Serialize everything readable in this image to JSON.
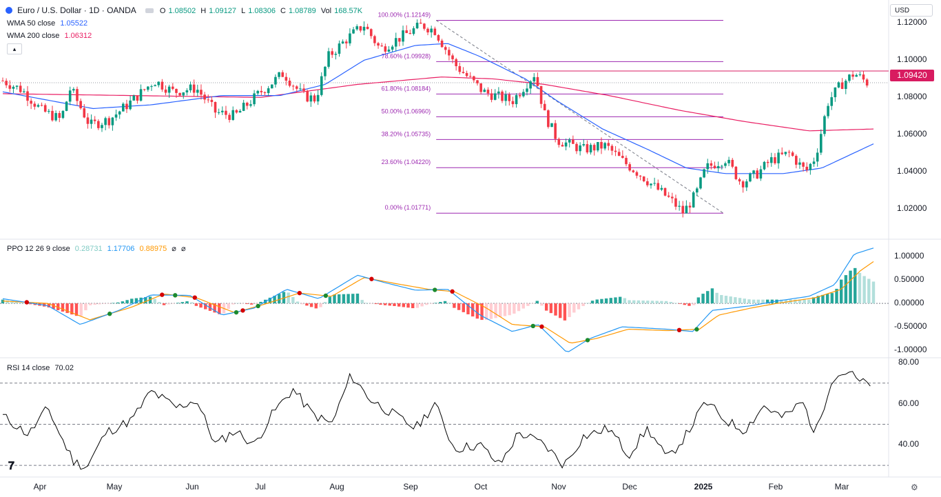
{
  "header": {
    "symbol_title": "Euro / U.S. Dollar · 1D · OANDA",
    "o_key": "O",
    "o_val": "1.08502",
    "h_key": "H",
    "h_val": "1.09127",
    "l_key": "L",
    "l_val": "1.08306",
    "c_key": "C",
    "c_val": "1.08789",
    "vol_key": "Vol",
    "vol_val": "168.57K",
    "wma50_label": "WMA 50 close",
    "wma50_value": "1.05522",
    "wma200_label": "WMA 200 close",
    "wma200_value": "1.06312",
    "currency": "USD",
    "current_price": "1.09420"
  },
  "ppo_legend": {
    "label": "PPO 12 26 9 close",
    "hist": "0.28731",
    "ppo": "1.17706",
    "signal": "0.88975"
  },
  "rsi_legend": {
    "label": "RSI 14 close",
    "value": "70.02"
  },
  "colors": {
    "up": "#089981",
    "down": "#f23645",
    "wma50": "#2962ff",
    "wma200": "#e91e63",
    "fib": "#9c27b0",
    "ppo": "#2196f3",
    "signal": "#ff9800",
    "rsi": "#000000"
  },
  "axes": {
    "price_ticks": [
      "1.12000",
      "1.10000",
      "1.08000",
      "1.06000",
      "1.04000",
      "1.02000"
    ],
    "ppo_ticks": [
      "1.00000",
      "0.50000",
      "0.00000",
      "-0.50000",
      "-1.00000"
    ],
    "rsi_ticks": [
      "80.00",
      "60.00",
      "40.00"
    ],
    "months": [
      "Apr",
      "May",
      "Jun",
      "Jul",
      "Aug",
      "Sep",
      "Oct",
      "Nov",
      "Dec",
      "2025",
      "Feb",
      "Mar"
    ]
  },
  "fib_levels": [
    {
      "label": "100.00% (1.12149)",
      "price": 1.12149
    },
    {
      "label": "78.60% (1.09928)",
      "price": 1.09928
    },
    {
      "label": "61.80% (1.08184)",
      "price": 1.08184
    },
    {
      "label": "50.00% (1.06960)",
      "price": 1.0696
    },
    {
      "label": "38.20% (1.05735)",
      "price": 1.05735
    },
    {
      "label": "23.60% (1.04220)",
      "price": 1.0422
    },
    {
      "label": "0.00% (1.01771)",
      "price": 1.01771
    }
  ],
  "chart_data": {
    "type": "candlestick",
    "title": "Euro / U.S. Dollar · 1D · OANDA",
    "x_unit": "month",
    "price_range": [
      1.01,
      1.125
    ],
    "price_series_approx": [
      [
        0,
        1.089
      ],
      [
        0.3,
        1.084
      ],
      [
        0.6,
        1.073
      ],
      [
        0.9,
        1.068
      ],
      [
        1.05,
        1.085
      ],
      [
        1.35,
        1.065
      ],
      [
        1.65,
        1.068
      ],
      [
        2.0,
        1.078
      ],
      [
        2.35,
        1.089
      ],
      [
        2.65,
        1.083
      ],
      [
        3.0,
        1.085
      ],
      [
        3.3,
        1.072
      ],
      [
        3.6,
        1.07
      ],
      [
        4.0,
        1.083
      ],
      [
        4.35,
        1.093
      ],
      [
        4.65,
        1.081
      ],
      [
        4.85,
        1.079
      ],
      [
        5.05,
        1.102
      ],
      [
        5.35,
        1.112
      ],
      [
        5.6,
        1.119
      ],
      [
        5.85,
        1.106
      ],
      [
        6.2,
        1.113
      ],
      [
        6.5,
        1.119
      ],
      [
        6.7,
        1.116
      ],
      [
        7.0,
        1.098
      ],
      [
        7.45,
        1.083
      ],
      [
        7.9,
        1.078
      ],
      [
        8.25,
        1.093
      ],
      [
        8.4,
        1.071
      ],
      [
        8.6,
        1.057
      ],
      [
        9.0,
        1.052
      ],
      [
        9.35,
        1.054
      ],
      [
        9.6,
        1.046
      ],
      [
        9.9,
        1.038
      ],
      [
        10.1,
        1.032
      ],
      [
        10.35,
        1.025
      ],
      [
        10.55,
        1.018
      ],
      [
        10.75,
        1.028
      ],
      [
        10.9,
        1.042
      ],
      [
        11.2,
        1.047
      ],
      [
        11.45,
        1.034
      ],
      [
        11.7,
        1.039
      ],
      [
        11.9,
        1.046
      ],
      [
        12.2,
        1.05
      ],
      [
        12.45,
        1.04
      ],
      [
        12.6,
        1.048
      ],
      [
        12.8,
        1.078
      ],
      [
        13.0,
        1.087
      ],
      [
        13.2,
        1.093
      ],
      [
        13.4,
        1.088
      ]
    ],
    "wma50_approx": [
      [
        0,
        1.083
      ],
      [
        1.4,
        1.074
      ],
      [
        2.3,
        1.076
      ],
      [
        3.4,
        1.081
      ],
      [
        4.3,
        1.081
      ],
      [
        5.0,
        1.087
      ],
      [
        5.6,
        1.1
      ],
      [
        6.4,
        1.108
      ],
      [
        6.9,
        1.109
      ],
      [
        7.4,
        1.102
      ],
      [
        8.1,
        1.09
      ],
      [
        8.6,
        1.078
      ],
      [
        9.3,
        1.063
      ],
      [
        10.0,
        1.052
      ],
      [
        10.6,
        1.042
      ],
      [
        11.2,
        1.039
      ],
      [
        12.1,
        1.039
      ],
      [
        12.7,
        1.042
      ],
      [
        13.5,
        1.055
      ]
    ],
    "wma200_approx": [
      [
        0,
        1.082
      ],
      [
        2.0,
        1.081
      ],
      [
        4.0,
        1.08
      ],
      [
        5.5,
        1.087
      ],
      [
        6.8,
        1.091
      ],
      [
        7.6,
        1.09
      ],
      [
        8.4,
        1.087
      ],
      [
        9.4,
        1.081
      ],
      [
        10.5,
        1.073
      ],
      [
        11.5,
        1.067
      ],
      [
        12.5,
        1.062
      ],
      [
        13.5,
        1.063
      ]
    ],
    "ppo_range": [
      -1.1,
      1.25
    ],
    "ppo_line_approx": [
      [
        0,
        0.1
      ],
      [
        0.7,
        -0.05
      ],
      [
        1.2,
        -0.45
      ],
      [
        1.8,
        -0.15
      ],
      [
        2.3,
        0.18
      ],
      [
        2.9,
        0.17
      ],
      [
        3.4,
        -0.25
      ],
      [
        3.9,
        -0.1
      ],
      [
        4.4,
        0.3
      ],
      [
        4.9,
        0.1
      ],
      [
        5.5,
        0.6
      ],
      [
        5.9,
        0.45
      ],
      [
        6.4,
        0.28
      ],
      [
        6.9,
        0.3
      ],
      [
        7.4,
        -0.25
      ],
      [
        7.9,
        -0.6
      ],
      [
        8.3,
        -0.45
      ],
      [
        8.75,
        -1.05
      ],
      [
        9.1,
        -0.75
      ],
      [
        9.6,
        -0.5
      ],
      [
        10.3,
        -0.55
      ],
      [
        10.7,
        -0.6
      ],
      [
        11.0,
        -0.15
      ],
      [
        11.6,
        -0.05
      ],
      [
        12.0,
        0.05
      ],
      [
        12.5,
        0.15
      ],
      [
        12.9,
        0.4
      ],
      [
        13.2,
        1.05
      ],
      [
        13.5,
        1.18
      ]
    ],
    "signal_line_approx": [
      [
        0,
        0.05
      ],
      [
        0.7,
        0.0
      ],
      [
        1.35,
        -0.35
      ],
      [
        2.0,
        -0.08
      ],
      [
        2.5,
        0.2
      ],
      [
        3.0,
        0.12
      ],
      [
        3.6,
        -0.2
      ],
      [
        4.1,
        0.0
      ],
      [
        4.6,
        0.22
      ],
      [
        5.1,
        0.15
      ],
      [
        5.6,
        0.55
      ],
      [
        6.1,
        0.42
      ],
      [
        6.6,
        0.3
      ],
      [
        7.0,
        0.25
      ],
      [
        7.5,
        -0.1
      ],
      [
        7.9,
        -0.45
      ],
      [
        8.4,
        -0.5
      ],
      [
        8.8,
        -0.85
      ],
      [
        9.2,
        -0.75
      ],
      [
        9.7,
        -0.55
      ],
      [
        10.3,
        -0.58
      ],
      [
        10.8,
        -0.55
      ],
      [
        11.1,
        -0.25
      ],
      [
        11.6,
        -0.1
      ],
      [
        12.0,
        0.0
      ],
      [
        12.6,
        0.12
      ],
      [
        13.0,
        0.3
      ],
      [
        13.3,
        0.7
      ],
      [
        13.5,
        0.89
      ]
    ],
    "rsi_range": [
      25,
      82
    ],
    "rsi_reference_lines": [
      70,
      50,
      30
    ],
    "rsi_series_approx": [
      [
        0,
        54
      ],
      [
        0.4,
        45
      ],
      [
        0.7,
        58
      ],
      [
        0.9,
        44
      ],
      [
        1.1,
        32
      ],
      [
        1.3,
        29
      ],
      [
        1.6,
        46
      ],
      [
        2.0,
        52
      ],
      [
        2.3,
        66
      ],
      [
        2.7,
        58
      ],
      [
        3.0,
        62
      ],
      [
        3.3,
        40
      ],
      [
        3.6,
        47
      ],
      [
        3.9,
        40
      ],
      [
        4.2,
        56
      ],
      [
        4.5,
        67
      ],
      [
        4.8,
        55
      ],
      [
        5.1,
        50
      ],
      [
        5.4,
        74
      ],
      [
        5.7,
        62
      ],
      [
        6.0,
        56
      ],
      [
        6.4,
        48
      ],
      [
        6.7,
        60
      ],
      [
        7.0,
        38
      ],
      [
        7.4,
        40
      ],
      [
        7.7,
        30
      ],
      [
        8.0,
        46
      ],
      [
        8.4,
        40
      ],
      [
        8.7,
        30
      ],
      [
        9.0,
        44
      ],
      [
        9.4,
        48
      ],
      [
        9.7,
        35
      ],
      [
        10.0,
        48
      ],
      [
        10.3,
        33
      ],
      [
        10.6,
        45
      ],
      [
        10.9,
        61
      ],
      [
        11.2,
        52
      ],
      [
        11.5,
        47
      ],
      [
        11.8,
        59
      ],
      [
        12.1,
        53
      ],
      [
        12.4,
        61
      ],
      [
        12.6,
        45
      ],
      [
        12.85,
        72
      ],
      [
        13.1,
        76
      ],
      [
        13.3,
        70
      ],
      [
        13.45,
        70
      ]
    ]
  }
}
